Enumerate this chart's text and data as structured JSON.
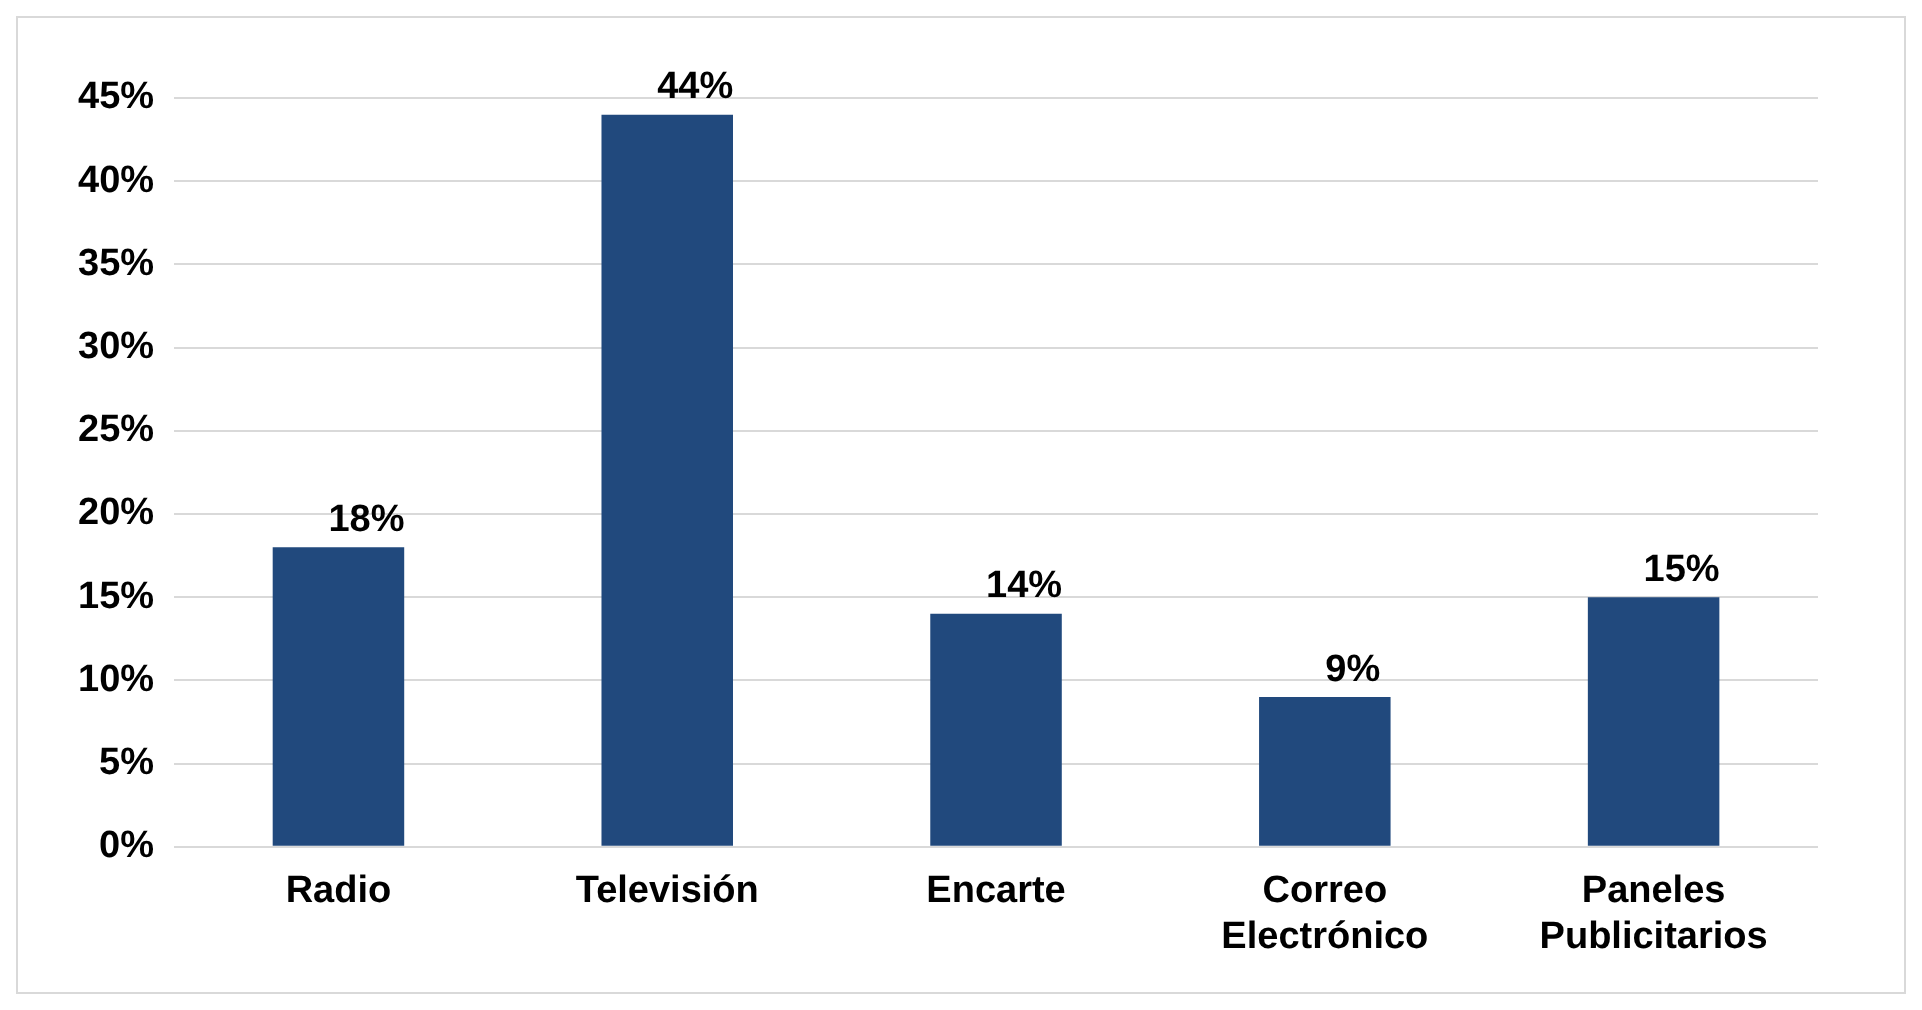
{
  "chart_data": {
    "type": "bar",
    "categories": [
      "Radio",
      "Televisión",
      "Encarte",
      "Correo Electrónico",
      "Paneles Publicitarios"
    ],
    "values": [
      18,
      44,
      14,
      9,
      15
    ],
    "value_labels": [
      "18%",
      "44%",
      "14%",
      "9%",
      "15%"
    ],
    "color": "#21497d",
    "ylim": [
      0,
      45
    ],
    "yticks": [
      {
        "value": 0,
        "label": "0%"
      },
      {
        "value": 5,
        "label": "5%"
      },
      {
        "value": 10,
        "label": "10%"
      },
      {
        "value": 15,
        "label": "15%"
      },
      {
        "value": 20,
        "label": "20%"
      },
      {
        "value": 25,
        "label": "25%"
      },
      {
        "value": 30,
        "label": "30%"
      },
      {
        "value": 35,
        "label": "35%"
      },
      {
        "value": 40,
        "label": "40%"
      },
      {
        "value": 45,
        "label": "45%"
      }
    ],
    "grid": "y"
  }
}
